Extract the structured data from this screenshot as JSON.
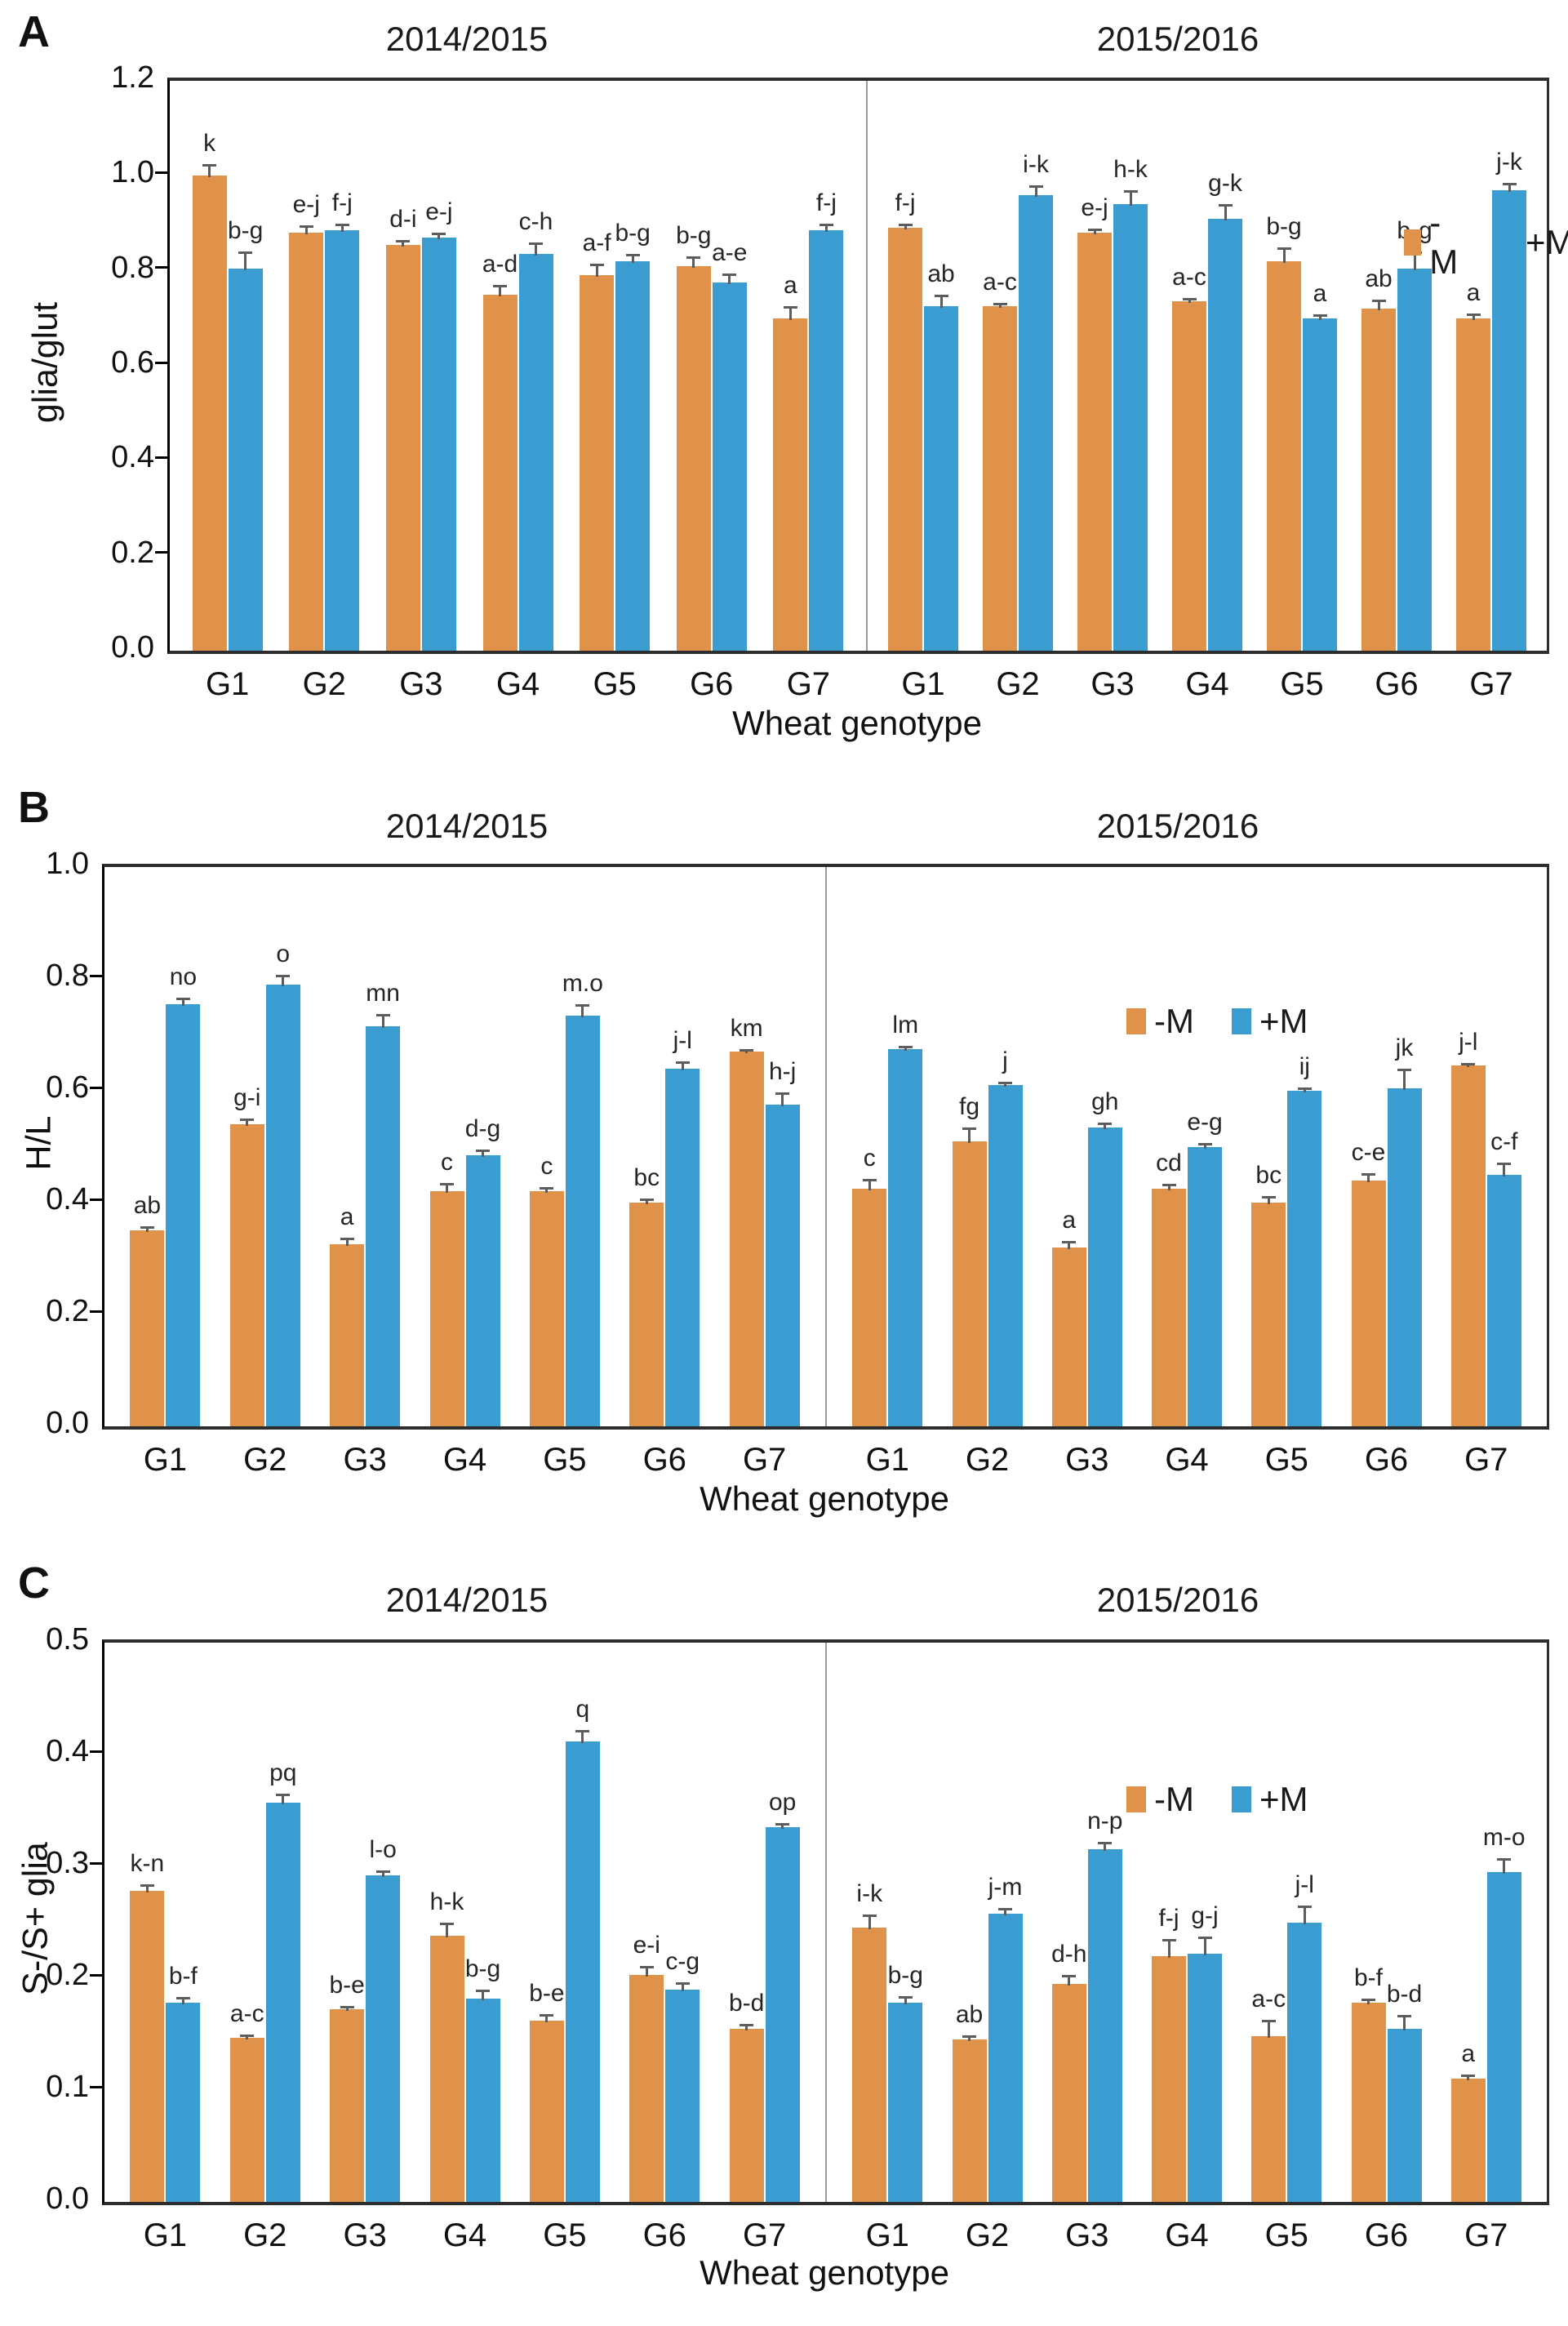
{
  "legend": {
    "items": [
      {
        "label": "-M",
        "color": "#E0914A"
      },
      {
        "label": "+M",
        "color": "#3B9CD1"
      }
    ]
  },
  "colors": {
    "minus_m": "#E0914A",
    "plus_m": "#3B9CD1",
    "error_bar": "#5c5c5c",
    "axis": "#2d2d2d"
  },
  "chart_data": [
    {
      "type": "bar",
      "panel_label": "A",
      "ylabel": "glia/glut",
      "xlabel": "Wheat genotype",
      "ylim": [
        0,
        1.2
      ],
      "ytick_step": 0.2,
      "ytick_decimals": 1,
      "grid": false,
      "legend_position": "top-right-inside",
      "halves": [
        {
          "title": "2014/2015",
          "categories": [
            "G1",
            "G2",
            "G3",
            "G4",
            "G5",
            "G6",
            "G7"
          ],
          "series": [
            {
              "name": "-M",
              "color_key": "minus_m",
              "values": [
                1.0,
                0.88,
                0.855,
                0.75,
                0.79,
                0.81,
                0.7
              ],
              "errors": [
                0.025,
                0.015,
                0.01,
                0.02,
                0.025,
                0.02,
                0.025
              ],
              "letters": [
                "k",
                "e-j",
                "d-i",
                "a-d",
                "a-f",
                "b-g",
                "a"
              ]
            },
            {
              "name": "+M",
              "color_key": "plus_m",
              "values": [
                0.805,
                0.885,
                0.87,
                0.835,
                0.82,
                0.775,
                0.885
              ],
              "errors": [
                0.035,
                0.015,
                0.01,
                0.025,
                0.015,
                0.02,
                0.015
              ],
              "letters": [
                "b-g",
                "f-j",
                "e-j",
                "c-h",
                "b-g",
                "a-e",
                "f-j"
              ]
            }
          ]
        },
        {
          "title": "2015/2016",
          "categories": [
            "G1",
            "G2",
            "G3",
            "G4",
            "G5",
            "G6",
            "G7"
          ],
          "series": [
            {
              "name": "-M",
              "color_key": "minus_m",
              "values": [
                0.89,
                0.725,
                0.88,
                0.735,
                0.82,
                0.72,
                0.7
              ],
              "errors": [
                0.01,
                0.008,
                0.008,
                0.008,
                0.03,
                0.02,
                0.01
              ],
              "letters": [
                "f-j",
                "a-c",
                "e-j",
                "a-c",
                "b-g",
                "ab",
                "a"
              ]
            },
            {
              "name": "+M",
              "color_key": "plus_m",
              "values": [
                0.725,
                0.96,
                0.94,
                0.91,
                0.7,
                0.805,
                0.97
              ],
              "errors": [
                0.025,
                0.02,
                0.03,
                0.03,
                0.008,
                0.035,
                0.015
              ],
              "letters": [
                "ab",
                "i-k",
                "h-k",
                "g-k",
                "a",
                "b-g",
                "j-k"
              ]
            }
          ]
        }
      ]
    },
    {
      "type": "bar",
      "panel_label": "B",
      "ylabel": "H/L",
      "xlabel": "Wheat genotype",
      "ylim": [
        0,
        1.0
      ],
      "ytick_step": 0.2,
      "ytick_decimals": 1,
      "grid": false,
      "legend_position": "top-center-inside",
      "halves": [
        {
          "title": "2014/2015",
          "categories": [
            "G1",
            "G2",
            "G3",
            "G4",
            "G5",
            "G6",
            "G7"
          ],
          "series": [
            {
              "name": "-M",
              "color_key": "minus_m",
              "values": [
                0.35,
                0.54,
                0.325,
                0.42,
                0.42,
                0.4,
                0.67
              ],
              "errors": [
                0.008,
                0.01,
                0.012,
                0.015,
                0.008,
                0.008,
                0.005
              ],
              "letters": [
                "ab",
                "g-i",
                "a",
                "c",
                "c",
                "bc",
                "km"
              ]
            },
            {
              "name": "+M",
              "color_key": "plus_m",
              "values": [
                0.755,
                0.79,
                0.715,
                0.485,
                0.735,
                0.64,
                0.575
              ],
              "errors": [
                0.012,
                0.018,
                0.022,
                0.01,
                0.02,
                0.012,
                0.022
              ],
              "letters": [
                "no",
                "o",
                "mn",
                "d-g",
                "m.o",
                "j-l",
                "h-j"
              ]
            }
          ]
        },
        {
          "title": "2015/2016",
          "categories": [
            "G1",
            "G2",
            "G3",
            "G4",
            "G5",
            "G6",
            "G7"
          ],
          "series": [
            {
              "name": "-M",
              "color_key": "minus_m",
              "values": [
                0.425,
                0.51,
                0.32,
                0.425,
                0.4,
                0.44,
                0.645
              ],
              "errors": [
                0.018,
                0.025,
                0.012,
                0.008,
                0.012,
                0.012,
                0.005
              ],
              "letters": [
                "c",
                "fg",
                "a",
                "cd",
                "bc",
                "c-e",
                "j-l"
              ]
            },
            {
              "name": "+M",
              "color_key": "plus_m",
              "values": [
                0.675,
                0.61,
                0.535,
                0.5,
                0.6,
                0.605,
                0.45
              ],
              "errors": [
                0.006,
                0.006,
                0.008,
                0.006,
                0.006,
                0.035,
                0.022
              ],
              "letters": [
                "lm",
                "j",
                "gh",
                "e-g",
                "ij",
                "jk",
                "c-f"
              ]
            }
          ]
        }
      ]
    },
    {
      "type": "bar",
      "panel_label": "C",
      "ylabel": "S-/S+ glia",
      "xlabel": "Wheat genotype",
      "ylim": [
        0,
        0.5
      ],
      "ytick_step": 0.1,
      "ytick_decimals": 1,
      "grid": false,
      "legend_position": "top-center-inside",
      "halves": [
        {
          "title": "2014/2015",
          "categories": [
            "G1",
            "G2",
            "G3",
            "G4",
            "G5",
            "G6",
            "G7"
          ],
          "series": [
            {
              "name": "-M",
              "color_key": "minus_m",
              "values": [
                0.278,
                0.147,
                0.172,
                0.238,
                0.162,
                0.203,
                0.155
              ],
              "errors": [
                0.006,
                0.003,
                0.003,
                0.012,
                0.006,
                0.008,
                0.004
              ],
              "letters": [
                "k-n",
                "a-c",
                "b-e",
                "h-k",
                "b-e",
                "e-i",
                "b-d"
              ]
            },
            {
              "name": "+M",
              "color_key": "plus_m",
              "values": [
                0.178,
                0.357,
                0.292,
                0.182,
                0.412,
                0.19,
                0.335
              ],
              "errors": [
                0.005,
                0.008,
                0.004,
                0.008,
                0.01,
                0.006,
                0.004
              ],
              "letters": [
                "b-f",
                "pq",
                "l-o",
                "b-g",
                "q",
                "c-g",
                "op"
              ]
            }
          ]
        },
        {
          "title": "2015/2016",
          "categories": [
            "G1",
            "G2",
            "G3",
            "G4",
            "G5",
            "G6",
            "G7"
          ],
          "series": [
            {
              "name": "-M",
              "color_key": "minus_m",
              "values": [
                0.245,
                0.145,
                0.195,
                0.22,
                0.148,
                0.178,
                0.11
              ],
              "errors": [
                0.012,
                0.004,
                0.008,
                0.015,
                0.015,
                0.004,
                0.004
              ],
              "letters": [
                "i-k",
                "ab",
                "d-h",
                "f-j",
                "a-c",
                "b-f",
                "a"
              ]
            },
            {
              "name": "+M",
              "color_key": "plus_m",
              "values": [
                0.178,
                0.258,
                0.315,
                0.222,
                0.25,
                0.155,
                0.295
              ],
              "errors": [
                0.006,
                0.005,
                0.007,
                0.015,
                0.015,
                0.012,
                0.012
              ],
              "letters": [
                "b-g",
                "j-m",
                "n-p",
                "g-j",
                "j-l",
                "b-d",
                "m-o"
              ]
            }
          ]
        }
      ]
    }
  ]
}
